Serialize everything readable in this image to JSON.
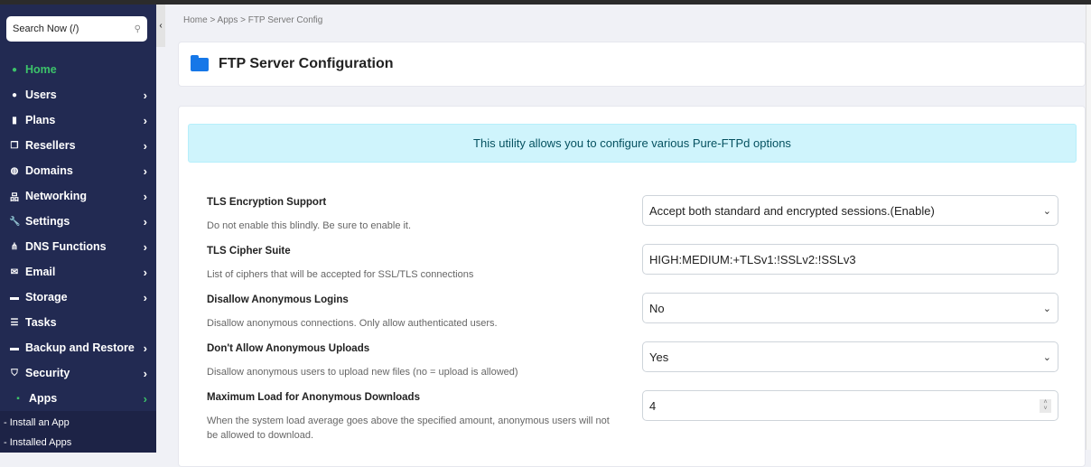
{
  "sidebar": {
    "search_placeholder": "Search Now (/)",
    "items": [
      {
        "label": "Home",
        "icon": "dashboard-icon"
      },
      {
        "label": "Users",
        "icon": "user-icon"
      },
      {
        "label": "Plans",
        "icon": "book-icon"
      },
      {
        "label": "Resellers",
        "icon": "clone-icon"
      },
      {
        "label": "Domains",
        "icon": "globe-icon"
      },
      {
        "label": "Networking",
        "icon": "network-icon"
      },
      {
        "label": "Settings",
        "icon": "wrench-icon"
      },
      {
        "label": "DNS Functions",
        "icon": "dns-icon"
      },
      {
        "label": "Email",
        "icon": "envelope-icon"
      },
      {
        "label": "Storage",
        "icon": "hdd-icon"
      },
      {
        "label": "Tasks",
        "icon": "list-icon"
      },
      {
        "label": "Backup and Restore",
        "icon": "hdd-icon"
      },
      {
        "label": "Security",
        "icon": "shield-icon"
      },
      {
        "label": "Apps",
        "icon": "box-icon"
      }
    ],
    "subitems": [
      "- Install an App",
      "- Installed Apps"
    ]
  },
  "breadcrumb": "Home > Apps > FTP Server Config",
  "page_title": "FTP Server Configuration",
  "info": "This utility allows you to configure various Pure-FTPd options",
  "fields": [
    {
      "label": "TLS Encryption Support",
      "desc": "Do not enable this blindly. Be sure to enable it.",
      "value": "Accept both standard and encrypted sessions.(Enable)"
    },
    {
      "label": "TLS Cipher Suite",
      "desc": "List of ciphers that will be accepted for SSL/TLS connections",
      "value": "HIGH:MEDIUM:+TLSv1:!SSLv2:!SSLv3"
    },
    {
      "label": "Disallow Anonymous Logins",
      "desc": "Disallow anonymous connections. Only allow authenticated users.",
      "value": "No"
    },
    {
      "label": "Don't Allow Anonymous Uploads",
      "desc": "Disallow anonymous users to upload new files (no = upload is allowed)",
      "value": "Yes"
    },
    {
      "label": "Maximum Load for Anonymous Downloads",
      "desc": "When the system load average goes above the specified amount, anonymous users will not be allowed to download.",
      "value": "4"
    }
  ],
  "colors": {
    "sidebar": "#222a52",
    "active": "#3cc36a",
    "accent": "#1677e8"
  }
}
